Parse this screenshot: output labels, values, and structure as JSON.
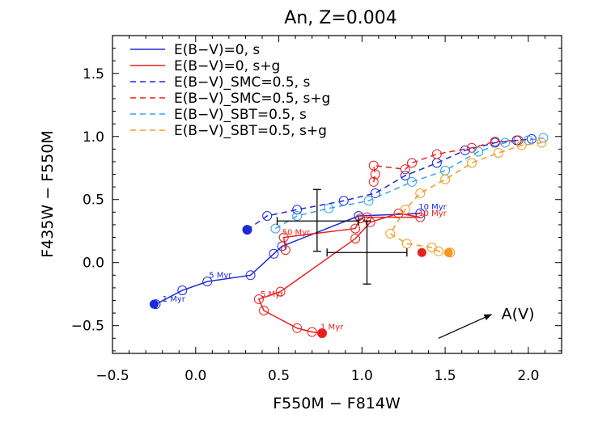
{
  "chart_data": {
    "type": "line",
    "title": "An, Z=0.004",
    "xlabel": "F550M − F814W",
    "ylabel": "F435W − F550M",
    "xlim": [
      -0.5,
      2.2
    ],
    "ylim": [
      -0.72,
      1.8
    ],
    "xticks": [
      -0.5,
      0.0,
      0.5,
      1.0,
      1.5,
      2.0
    ],
    "xtick_labels": [
      "−0.5",
      "0.0",
      "0.5",
      "1.0",
      "1.5",
      "2.0"
    ],
    "yticks": [
      -0.5,
      0.0,
      0.5,
      1.0,
      1.5
    ],
    "ytick_labels": [
      "−0.5",
      "0.0",
      "0.5",
      "1.0",
      "1.5"
    ],
    "legend_position": "top-left",
    "series": [
      {
        "name": "E(B−V)=0, s",
        "color": "#1c2bd8",
        "dash": "solid",
        "points": [
          [
            -0.24,
            -0.33
          ],
          [
            -0.08,
            -0.22
          ],
          [
            0.07,
            -0.15
          ],
          [
            0.33,
            -0.1
          ],
          [
            0.47,
            0.07
          ],
          [
            0.52,
            0.13
          ],
          [
            0.98,
            0.37
          ],
          [
            1.35,
            0.39
          ]
        ],
        "start": [
          -0.25,
          -0.33
        ],
        "end": [
          0.31,
          0.26
        ]
      },
      {
        "name": "E(B−V)=0, s+g",
        "color": "#e8201e",
        "dash": "solid",
        "points": [
          [
            0.76,
            -0.56
          ],
          [
            0.7,
            -0.55
          ],
          [
            0.61,
            -0.52
          ],
          [
            0.41,
            -0.38
          ],
          [
            0.38,
            -0.29
          ],
          [
            0.51,
            -0.23
          ],
          [
            0.96,
            0.19
          ],
          [
            1.05,
            0.32
          ],
          [
            1.22,
            0.39
          ],
          [
            1.35,
            0.36
          ],
          [
            1.03,
            0.36
          ],
          [
            0.99,
            0.35
          ],
          [
            0.96,
            0.27
          ],
          [
            0.53,
            0.2
          ],
          [
            0.54,
            0.1
          ]
        ],
        "start": [
          0.76,
          -0.56
        ],
        "end": [
          1.36,
          0.08
        ]
      },
      {
        "name": "E(B−V)_SMC=0.5, s",
        "color": "#1c2bd8",
        "dash": "dashed",
        "points": [
          [
            0.31,
            0.26
          ],
          [
            0.43,
            0.37
          ],
          [
            0.61,
            0.42
          ],
          [
            0.89,
            0.49
          ],
          [
            1.08,
            0.55
          ],
          [
            1.26,
            0.69
          ],
          [
            1.45,
            0.79
          ],
          [
            1.62,
            0.89
          ],
          [
            1.8,
            0.95
          ],
          [
            1.93,
            0.97
          ],
          [
            2.02,
            0.98
          ]
        ]
      },
      {
        "name": "E(B−V)_SMC=0.5, s+g",
        "color": "#e8201e",
        "dash": "dashed",
        "points": [
          [
            1.07,
            0.64
          ],
          [
            1.08,
            0.7
          ],
          [
            1.07,
            0.77
          ],
          [
            1.26,
            0.74
          ],
          [
            1.3,
            0.79
          ],
          [
            1.45,
            0.86
          ],
          [
            1.66,
            0.91
          ],
          [
            1.8,
            0.96
          ],
          [
            1.94,
            0.97
          ]
        ]
      },
      {
        "name": "E(B−V)_SBT=0.5, s",
        "color": "#3aa0e8",
        "dash": "dashed",
        "points": [
          [
            0.48,
            0.27
          ],
          [
            0.61,
            0.37
          ],
          [
            0.8,
            0.43
          ],
          [
            1.04,
            0.49
          ],
          [
            1.3,
            0.64
          ],
          [
            1.5,
            0.73
          ],
          [
            1.7,
            0.88
          ],
          [
            1.86,
            0.95
          ],
          [
            2.0,
            0.97
          ],
          [
            2.09,
            0.99
          ]
        ]
      },
      {
        "name": "E(B−V)_SBT=0.5, s+g",
        "color": "#f29a1e",
        "dash": "dashed",
        "points": [
          [
            1.53,
            0.08
          ],
          [
            1.46,
            0.09
          ],
          [
            1.42,
            0.12
          ],
          [
            1.27,
            0.15
          ],
          [
            1.17,
            0.23
          ],
          [
            1.26,
            0.42
          ],
          [
            1.35,
            0.55
          ],
          [
            1.5,
            0.66
          ],
          [
            1.66,
            0.79
          ],
          [
            1.82,
            0.87
          ],
          [
            1.96,
            0.93
          ],
          [
            2.08,
            0.95
          ]
        ],
        "start": [
          1.52,
          0.08
        ]
      }
    ],
    "annotations": [
      {
        "text": "1 Myr",
        "color": "#1c2bd8",
        "x": -0.2,
        "y": -0.31
      },
      {
        "text": "5 Myr",
        "color": "#1c2bd8",
        "x": 0.08,
        "y": -0.12
      },
      {
        "text": "50 Myr",
        "color": "#e8201e",
        "x": 0.52,
        "y": 0.22
      },
      {
        "text": "5 Myr",
        "color": "#e8201e",
        "x": 0.39,
        "y": -0.27
      },
      {
        "text": "1 Myr",
        "color": "#e8201e",
        "x": 0.75,
        "y": -0.53
      },
      {
        "text": "10 Myr",
        "color": "#1c2bd8",
        "x": 1.34,
        "y": 0.42
      },
      {
        "text": "10 Myr",
        "color": "#e8201e",
        "x": 1.34,
        "y": 0.37
      }
    ],
    "error_bars": [
      {
        "x": 0.73,
        "y": 0.33,
        "x_lo": 0.49,
        "x_hi": 0.98,
        "y_lo": 0.09,
        "y_hi": 0.58
      },
      {
        "x": 1.03,
        "y": 0.08,
        "x_lo": 0.79,
        "x_hi": 1.27,
        "y_lo": -0.17,
        "y_hi": 0.33
      }
    ],
    "vector": {
      "label": "A(V)",
      "from": [
        1.46,
        -0.6
      ],
      "to": [
        1.78,
        -0.41
      ]
    }
  }
}
